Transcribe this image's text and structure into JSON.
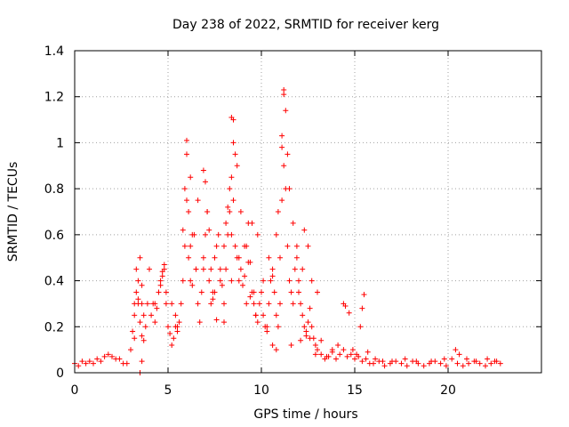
{
  "chart_data": {
    "type": "scatter",
    "title": "Day 238 of 2022, SRMTID for receiver kerg",
    "xlabel": "GPS time / hours",
    "ylabel": "SRMTID / TECUs",
    "xlim": [
      0,
      25
    ],
    "ylim": [
      0,
      1.4
    ],
    "x_ticks": [
      0,
      5,
      10,
      15,
      20
    ],
    "x_tick_labels": [
      "0",
      "5",
      "10",
      "15",
      "20"
    ],
    "y_ticks": [
      0,
      0.2,
      0.4,
      0.6,
      0.8,
      1.0,
      1.2,
      1.4
    ],
    "y_tick_labels": [
      "0",
      "0.2",
      "0.4",
      "0.6",
      "0.8",
      "1",
      "1.2",
      "1.4"
    ],
    "grid": true,
    "marker": "plus",
    "series": [
      {
        "name": "kerg",
        "color": "#ff0000",
        "x": [
          0.0,
          0.2,
          0.4,
          0.6,
          0.8,
          1.0,
          1.2,
          1.4,
          1.6,
          1.8,
          2.0,
          2.2,
          2.4,
          2.6,
          2.8,
          3.0,
          3.1,
          3.2,
          3.3,
          3.4,
          3.5,
          3.6,
          3.7,
          3.8,
          3.9,
          4.0,
          4.1,
          4.2,
          4.3,
          4.4,
          4.5,
          4.6,
          4.7,
          4.8,
          4.9,
          5.0,
          5.1,
          5.2,
          5.3,
          5.4,
          5.5,
          5.6,
          5.7,
          5.8,
          5.9,
          6.0,
          6.1,
          6.2,
          6.3,
          6.4,
          6.5,
          6.6,
          6.7,
          6.8,
          6.9,
          7.0,
          7.1,
          7.2,
          7.3,
          7.4,
          7.5,
          7.6,
          7.7,
          7.8,
          7.9,
          8.0,
          8.1,
          8.2,
          8.3,
          8.4,
          8.5,
          8.6,
          8.7,
          8.8,
          8.9,
          9.0,
          9.1,
          9.2,
          9.3,
          9.4,
          9.5,
          9.6,
          9.7,
          9.8,
          9.9,
          10.0,
          10.1,
          10.2,
          10.3,
          10.4,
          10.5,
          10.6,
          10.7,
          10.8,
          10.9,
          11.0,
          11.1,
          11.2,
          11.3,
          11.4,
          11.5,
          11.6,
          11.7,
          11.8,
          11.9,
          12.0,
          12.1,
          12.2,
          12.3,
          12.4,
          12.5,
          12.6,
          12.7,
          12.8,
          12.9,
          13.0,
          13.2,
          13.4,
          13.6,
          13.8,
          14.0,
          14.2,
          14.4,
          14.6,
          14.8,
          15.0,
          15.2,
          15.4,
          15.6,
          15.8,
          16.0,
          16.3,
          16.6,
          16.9,
          17.2,
          17.5,
          17.8,
          18.1,
          18.4,
          18.7,
          19.0,
          19.3,
          19.6,
          19.9,
          20.2,
          20.5,
          20.8,
          21.1,
          21.4,
          21.7,
          22.0,
          22.3,
          22.6,
          22.8,
          3.5,
          3.6,
          3.4,
          3.5,
          3.3,
          3.6,
          3.7,
          3.2,
          4.8,
          4.7,
          4.9,
          4.6,
          5.2,
          5.4,
          5.5,
          5.8,
          5.9,
          6.0,
          6.0,
          6.1,
          6.2,
          6.2,
          6.3,
          6.5,
          6.6,
          6.9,
          6.9,
          7.0,
          7.1,
          7.2,
          7.3,
          7.5,
          7.8,
          8.0,
          8.1,
          8.2,
          8.3,
          8.4,
          8.4,
          8.5,
          8.5,
          8.6,
          8.7,
          8.9,
          9.1,
          9.3,
          9.4,
          9.5,
          9.6,
          9.8,
          10.1,
          10.4,
          10.6,
          10.8,
          10.9,
          11.0,
          11.1,
          11.1,
          11.2,
          11.2,
          11.3,
          11.4,
          11.5,
          11.7,
          11.9,
          12.0,
          12.2,
          12.3,
          12.5,
          12.7,
          13.0,
          14.4,
          14.5,
          14.7,
          15.3,
          15.4,
          15.5,
          3.2,
          3.4,
          3.6,
          4.3,
          4.5,
          7.4,
          7.6,
          8.0,
          8.4,
          8.8,
          9.2,
          9.7,
          10.3,
          10.6,
          10.8,
          11.6,
          12.1,
          12.4,
          12.6,
          12.9,
          13.2,
          13.5,
          13.8,
          14.1,
          14.9,
          15.1,
          15.7,
          16.1,
          16.5,
          17.0,
          17.7,
          18.3,
          19.1,
          19.8,
          20.4,
          20.6,
          21.0,
          21.5,
          22.1,
          22.5
        ],
        "y": [
          0.04,
          0.03,
          0.05,
          0.04,
          0.05,
          0.04,
          0.06,
          0.05,
          0.07,
          0.08,
          0.07,
          0.06,
          0.06,
          0.04,
          0.04,
          0.1,
          0.18,
          0.25,
          0.35,
          0.3,
          0.22,
          0.16,
          0.14,
          0.2,
          0.3,
          0.45,
          0.25,
          0.3,
          0.22,
          0.28,
          0.35,
          0.4,
          0.42,
          0.45,
          0.3,
          0.2,
          0.17,
          0.12,
          0.15,
          0.2,
          0.18,
          0.22,
          0.3,
          0.4,
          0.55,
          0.75,
          0.5,
          0.4,
          0.38,
          0.6,
          0.45,
          0.3,
          0.22,
          0.35,
          0.45,
          0.6,
          0.7,
          0.4,
          0.3,
          0.35,
          0.5,
          0.55,
          0.6,
          0.45,
          0.38,
          0.3,
          0.45,
          0.6,
          0.7,
          0.85,
          0.75,
          0.55,
          0.5,
          0.4,
          0.45,
          0.38,
          0.42,
          0.55,
          0.65,
          0.48,
          0.35,
          0.3,
          0.25,
          0.22,
          0.3,
          0.35,
          0.25,
          0.2,
          0.18,
          0.3,
          0.4,
          0.45,
          0.35,
          0.25,
          0.2,
          0.3,
          0.75,
          0.9,
          0.8,
          0.55,
          0.4,
          0.35,
          0.3,
          0.45,
          0.55,
          0.4,
          0.3,
          0.25,
          0.2,
          0.18,
          0.22,
          0.28,
          0.2,
          0.15,
          0.12,
          0.1,
          0.08,
          0.06,
          0.07,
          0.09,
          0.06,
          0.08,
          0.1,
          0.07,
          0.08,
          0.06,
          0.07,
          0.05,
          0.06,
          0.04,
          0.04,
          0.05,
          0.03,
          0.04,
          0.05,
          0.04,
          0.03,
          0.05,
          0.04,
          0.03,
          0.04,
          0.05,
          0.04,
          0.03,
          0.06,
          0.04,
          0.03,
          0.04,
          0.05,
          0.04,
          0.03,
          0.04,
          0.05,
          0.04,
          0.0,
          0.05,
          0.4,
          0.5,
          0.45,
          0.3,
          0.25,
          0.15,
          0.47,
          0.44,
          0.35,
          0.38,
          0.3,
          0.25,
          0.2,
          0.62,
          0.8,
          0.95,
          1.01,
          0.7,
          0.85,
          0.55,
          0.6,
          0.45,
          0.75,
          0.5,
          0.88,
          0.83,
          0.7,
          0.62,
          0.45,
          0.35,
          0.4,
          0.55,
          0.65,
          0.72,
          0.8,
          0.6,
          1.11,
          1.1,
          1.0,
          0.95,
          0.9,
          0.7,
          0.55,
          0.48,
          0.33,
          0.65,
          0.35,
          0.6,
          0.4,
          0.5,
          0.42,
          0.6,
          0.7,
          0.5,
          1.03,
          0.98,
          1.23,
          1.21,
          1.14,
          0.95,
          0.8,
          0.65,
          0.5,
          0.35,
          0.45,
          0.62,
          0.55,
          0.4,
          0.35,
          0.3,
          0.29,
          0.26,
          0.2,
          0.28,
          0.34,
          0.3,
          0.32,
          0.38,
          0.3,
          0.35,
          0.32,
          0.23,
          0.22,
          0.4,
          0.5,
          0.3,
          0.25,
          0.2,
          0.12,
          0.1,
          0.12,
          0.14,
          0.16,
          0.15,
          0.08,
          0.14,
          0.07,
          0.1,
          0.12,
          0.1,
          0.08,
          0.09,
          0.06,
          0.05,
          0.05,
          0.06,
          0.05,
          0.05,
          0.06,
          0.1,
          0.08,
          0.06,
          0.05,
          0.06,
          0.05
        ]
      }
    ]
  }
}
